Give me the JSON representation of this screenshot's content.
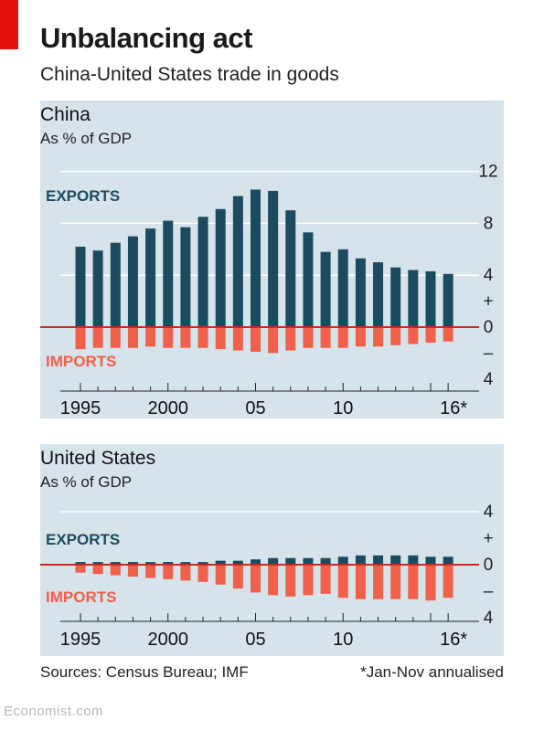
{
  "title": "Unbalancing act",
  "subtitle": "China-United States trade in goods",
  "sources": "Sources: Census Bureau; IMF",
  "footnote": "*Jan-Nov annualised",
  "watermark": "Economist.com",
  "colors": {
    "exports": "#1c4b5f",
    "imports": "#f0604a",
    "zero_line": "#d0281e",
    "panel_bg": "#d7e3ea",
    "grid": "#ffffff"
  },
  "chart_data": [
    {
      "type": "bar",
      "title": "China",
      "ylabel": "As % of GDP",
      "x_tick_labels": [
        "1995",
        "2000",
        "05",
        "10",
        "16*"
      ],
      "ylim": [
        -4,
        12
      ],
      "y_ticks": [
        12,
        8,
        4,
        "+",
        0,
        "–",
        4
      ],
      "annotations": [
        "EXPORTS",
        "IMPORTS"
      ],
      "x": [
        1995,
        1996,
        1997,
        1998,
        1999,
        2000,
        2001,
        2002,
        2003,
        2004,
        2005,
        2006,
        2007,
        2008,
        2009,
        2010,
        2011,
        2012,
        2013,
        2014,
        2015,
        2016
      ],
      "series": [
        {
          "name": "EXPORTS",
          "values": [
            6.2,
            5.9,
            6.5,
            7.0,
            7.6,
            8.2,
            7.7,
            8.5,
            9.1,
            10.1,
            10.6,
            10.5,
            9.0,
            7.3,
            5.8,
            6.0,
            5.3,
            5.0,
            4.6,
            4.4,
            4.3,
            4.1
          ]
        },
        {
          "name": "IMPORTS",
          "values": [
            -1.7,
            -1.6,
            -1.6,
            -1.6,
            -1.5,
            -1.6,
            -1.6,
            -1.6,
            -1.7,
            -1.8,
            -1.9,
            -2.0,
            -1.8,
            -1.6,
            -1.6,
            -1.6,
            -1.5,
            -1.5,
            -1.4,
            -1.3,
            -1.2,
            -1.1
          ]
        }
      ]
    },
    {
      "type": "bar",
      "title": "United States",
      "ylabel": "As % of GDP",
      "x_tick_labels": [
        "1995",
        "2000",
        "05",
        "10",
        "16*"
      ],
      "ylim": [
        -4,
        4
      ],
      "y_ticks": [
        4,
        "+",
        0,
        "–",
        4
      ],
      "annotations": [
        "EXPORTS",
        "IMPORTS"
      ],
      "x": [
        1995,
        1996,
        1997,
        1998,
        1999,
        2000,
        2001,
        2002,
        2003,
        2004,
        2005,
        2006,
        2007,
        2008,
        2009,
        2010,
        2011,
        2012,
        2013,
        2014,
        2015,
        2016
      ],
      "series": [
        {
          "name": "EXPORTS",
          "values": [
            0.2,
            0.2,
            0.2,
            0.2,
            0.2,
            0.2,
            0.2,
            0.2,
            0.3,
            0.3,
            0.4,
            0.5,
            0.5,
            0.5,
            0.5,
            0.6,
            0.7,
            0.7,
            0.7,
            0.7,
            0.6,
            0.6
          ]
        },
        {
          "name": "IMPORTS",
          "values": [
            -0.6,
            -0.7,
            -0.8,
            -0.9,
            -1.0,
            -1.1,
            -1.2,
            -1.3,
            -1.5,
            -1.8,
            -2.1,
            -2.3,
            -2.4,
            -2.3,
            -2.2,
            -2.5,
            -2.6,
            -2.6,
            -2.6,
            -2.6,
            -2.7,
            -2.5
          ]
        }
      ]
    }
  ]
}
